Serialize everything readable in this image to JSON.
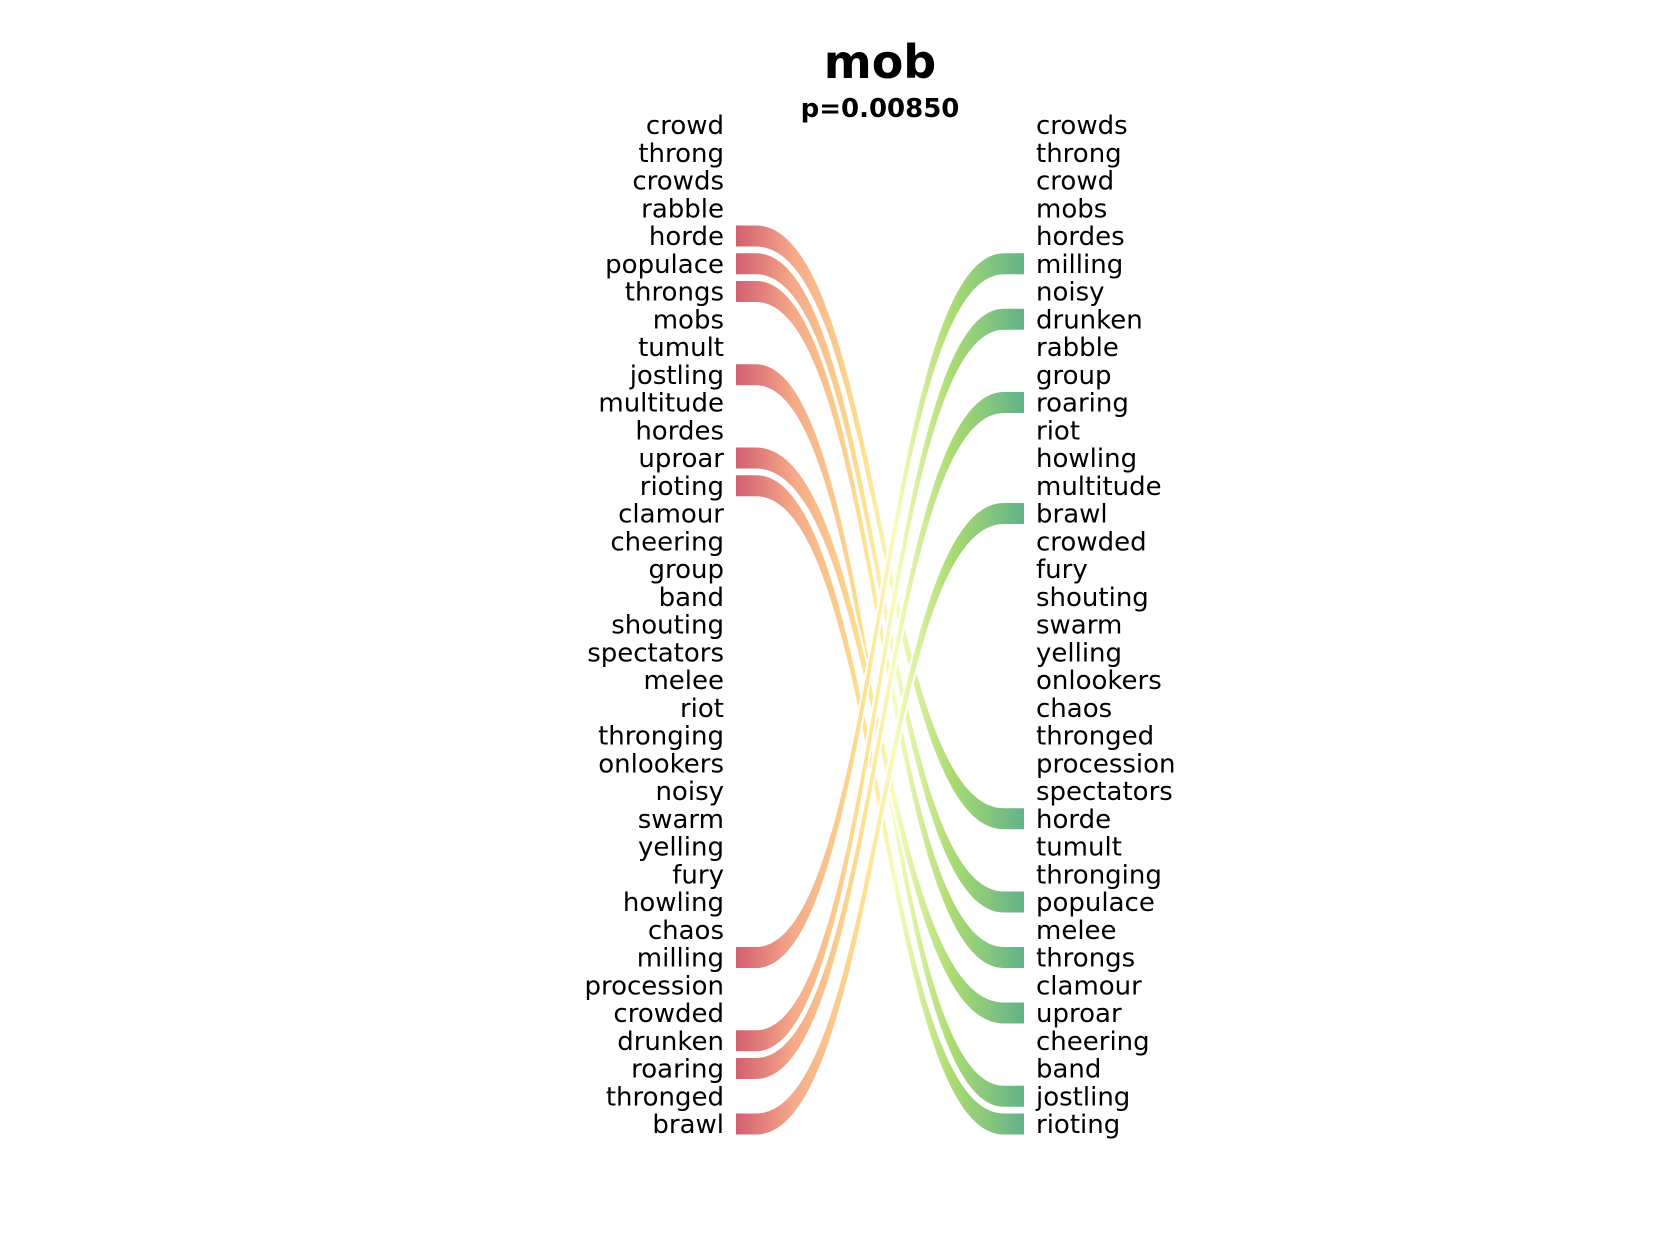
{
  "chart_data": {
    "type": "bump",
    "title": "mob",
    "subtitle": "p=0.00850",
    "left_words": [
      "crowd",
      "throng",
      "crowds",
      "rabble",
      "horde",
      "populace",
      "throngs",
      "mobs",
      "tumult",
      "jostling",
      "multitude",
      "hordes",
      "uproar",
      "rioting",
      "clamour",
      "cheering",
      "group",
      "band",
      "shouting",
      "spectators",
      "melee",
      "riot",
      "thronging",
      "onlookers",
      "noisy",
      "swarm",
      "yelling",
      "fury",
      "howling",
      "chaos",
      "milling",
      "procession",
      "crowded",
      "drunken",
      "roaring",
      "thronged",
      "brawl"
    ],
    "right_words": [
      "crowds",
      "throng",
      "crowd",
      "mobs",
      "hordes",
      "milling",
      "noisy",
      "drunken",
      "rabble",
      "group",
      "roaring",
      "riot",
      "howling",
      "multitude",
      "brawl",
      "crowded",
      "fury",
      "shouting",
      "swarm",
      "yelling",
      "onlookers",
      "chaos",
      "thronged",
      "procession",
      "spectators",
      "horde",
      "tumult",
      "thronging",
      "populace",
      "melee",
      "throngs",
      "clamour",
      "uproar",
      "cheering",
      "band",
      "jostling",
      "rioting"
    ],
    "links": [
      {
        "word": "horde",
        "from": 5,
        "to": 26
      },
      {
        "word": "populace",
        "from": 6,
        "to": 29
      },
      {
        "word": "throngs",
        "from": 7,
        "to": 31
      },
      {
        "word": "jostling",
        "from": 10,
        "to": 36
      },
      {
        "word": "uproar",
        "from": 13,
        "to": 33
      },
      {
        "word": "rioting",
        "from": 14,
        "to": 37
      },
      {
        "word": "milling",
        "from": 31,
        "to": 6
      },
      {
        "word": "drunken",
        "from": 34,
        "to": 8
      },
      {
        "word": "roaring",
        "from": 35,
        "to": 11
      },
      {
        "word": "brawl",
        "from": 37,
        "to": 15
      }
    ],
    "colors": {
      "left_start": "#d0566a",
      "mid_warm": "#f4a582",
      "mid_light": "#fee08b",
      "mid_pale": "#f7fcb9",
      "right_light": "#a6d96a",
      "right_end": "#5aae84"
    }
  }
}
